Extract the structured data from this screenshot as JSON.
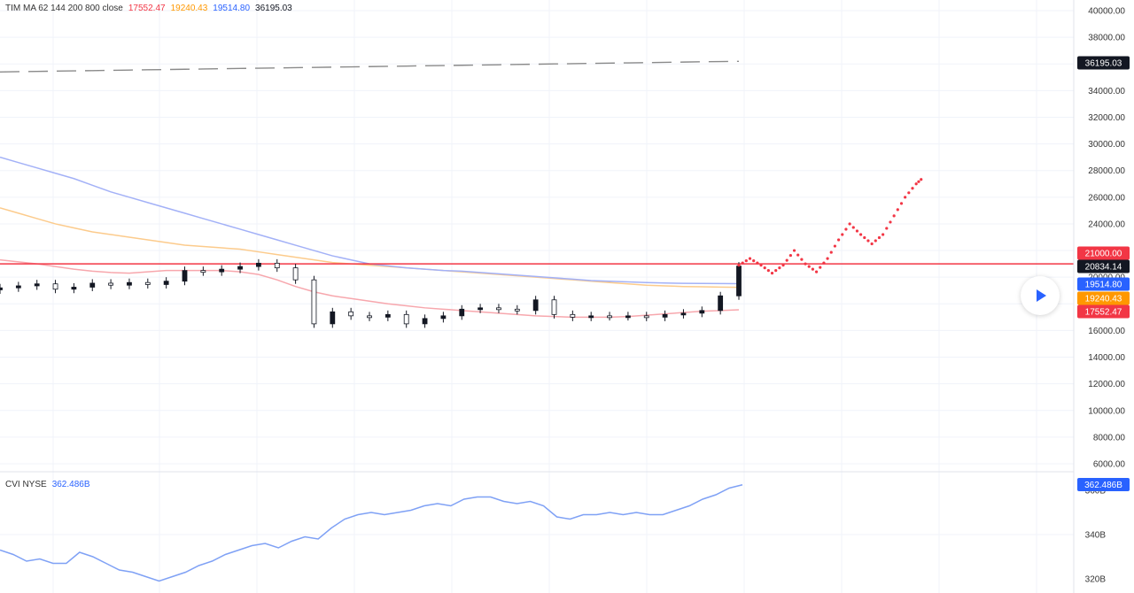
{
  "main_legend": {
    "label": "TIM MA 62 144 200 800 close",
    "values": [
      {
        "text": "17552.47",
        "color": "#f23645"
      },
      {
        "text": "19240.43",
        "color": "#ff9800"
      },
      {
        "text": "19514.80",
        "color": "#2962ff"
      },
      {
        "text": "36195.03",
        "color": "#131722"
      }
    ]
  },
  "sub_legend": {
    "label": "CVI NYSE",
    "value": "362.486B",
    "color": "#2962ff"
  },
  "price_axis": {
    "ticks": [
      "40000.00",
      "38000.00",
      "36000.00",
      "34000.00",
      "32000.00",
      "30000.00",
      "28000.00",
      "26000.00",
      "24000.00",
      "22000.00",
      "20000.00",
      "18000.00",
      "16000.00",
      "14000.00",
      "12000.00",
      "10000.00",
      "8000.00",
      "6000.00"
    ]
  },
  "price_tags": [
    {
      "text": "36195.03",
      "value": 36195.03,
      "color": "#131722"
    },
    {
      "text": "21000.00",
      "value": 21000.0,
      "color": "#f23645"
    },
    {
      "text": "20834.14",
      "value": 20834.14,
      "color": "#131722"
    },
    {
      "text": "19514.80",
      "value": 19514.8,
      "color": "#2962ff"
    },
    {
      "text": "19240.43",
      "value": 19240.43,
      "color": "#ff9800"
    },
    {
      "text": "17552.47",
      "value": 17552.47,
      "color": "#f23645"
    }
  ],
  "sub_axis": {
    "ticks": [
      {
        "text": "360B",
        "value": 360
      },
      {
        "text": "340B",
        "value": 340
      },
      {
        "text": "320B",
        "value": 320
      }
    ],
    "tag": {
      "text": "362.486B",
      "value": 362.486,
      "color": "#2962ff"
    }
  },
  "chart_data": [
    {
      "type": "line",
      "panel": "price",
      "ylim": [
        5000,
        41000
      ],
      "x": [
        0,
        5,
        10,
        15,
        20,
        25,
        30,
        35,
        40,
        45,
        50,
        55,
        60,
        65,
        70,
        75,
        80,
        85,
        90,
        95,
        100,
        105,
        110,
        115,
        120,
        125,
        130,
        135,
        140,
        145,
        150,
        155,
        160,
        165,
        170,
        175,
        180,
        185,
        190,
        195,
        200
      ],
      "horizontal_line": {
        "value": 21000,
        "color": "#f23645"
      },
      "projection": {
        "color": "#f23645",
        "x": [
          200,
          203,
          206,
          209,
          212,
          215,
          218,
          221,
          224,
          227,
          230,
          233,
          236,
          239,
          242,
          245,
          248,
          250
        ],
        "y": [
          20900,
          21400,
          20900,
          20300,
          20900,
          22000,
          21000,
          20400,
          21400,
          22800,
          24000,
          23200,
          22500,
          23200,
          24600,
          26000,
          27000,
          27500
        ]
      },
      "series": [
        {
          "name": "MA62",
          "color": "#f7a7ad",
          "values": [
            21300,
            21150,
            21000,
            20800,
            20600,
            20450,
            20350,
            20300,
            20400,
            20500,
            20500,
            20500,
            20500,
            20400,
            20200,
            19800,
            19300,
            18900,
            18600,
            18400,
            18200,
            18000,
            17850,
            17700,
            17600,
            17500,
            17400,
            17300,
            17200,
            17100,
            17050,
            17000,
            17000,
            17000,
            17050,
            17150,
            17250,
            17350,
            17450,
            17500,
            17552
          ]
        },
        {
          "name": "MA144",
          "color": "#fccb8c",
          "values": [
            25200,
            24800,
            24400,
            24000,
            23700,
            23400,
            23200,
            23000,
            22800,
            22600,
            22400,
            22300,
            22200,
            22100,
            21900,
            21700,
            21500,
            21300,
            21100,
            21000,
            20900,
            20800,
            20700,
            20600,
            20500,
            20400,
            20300,
            20200,
            20100,
            20000,
            19900,
            19800,
            19700,
            19600,
            19500,
            19400,
            19350,
            19300,
            19280,
            19260,
            19240
          ]
        },
        {
          "name": "MA200",
          "color": "#a3b1f7",
          "values": [
            29000,
            28600,
            28200,
            27800,
            27400,
            26900,
            26400,
            26000,
            25600,
            25200,
            24800,
            24400,
            24000,
            23600,
            23200,
            22800,
            22400,
            22000,
            21600,
            21300,
            21000,
            20850,
            20700,
            20600,
            20500,
            20450,
            20350,
            20250,
            20150,
            20050,
            19950,
            19850,
            19750,
            19700,
            19650,
            19600,
            19560,
            19540,
            19530,
            19520,
            19515
          ]
        },
        {
          "name": "MA800",
          "color": "#8a8a8a",
          "dashed": true,
          "values": [
            35400,
            35420,
            35440,
            35460,
            35480,
            35500,
            35520,
            35540,
            35560,
            35580,
            35600,
            35620,
            35640,
            35660,
            35680,
            35700,
            35720,
            35740,
            35760,
            35780,
            35800,
            35820,
            35840,
            35860,
            35880,
            35900,
            35920,
            35940,
            35960,
            35980,
            36000,
            36020,
            36040,
            36060,
            36080,
            36100,
            36120,
            36140,
            36160,
            36180,
            36195
          ]
        }
      ],
      "candles_close": [
        19200,
        19350,
        19500,
        19100,
        19250,
        19550,
        19400,
        19600,
        19450,
        19700,
        20500,
        20400,
        20600,
        20800,
        21050,
        20700,
        19800,
        16500,
        17400,
        17100,
        17000,
        17200,
        16500,
        16900,
        17100,
        17600,
        17700,
        17600,
        17500,
        18300,
        17200,
        17000,
        17100,
        17050,
        17100,
        17000,
        17200,
        17300,
        17500,
        18600,
        20834
      ]
    },
    {
      "type": "line",
      "panel": "sub",
      "ylim": [
        318,
        366
      ],
      "series": [
        {
          "name": "CVI NYSE",
          "color": "#7fa1f5",
          "values": [
            333,
            331,
            328,
            329,
            327,
            327,
            332,
            330,
            327,
            324,
            323,
            321,
            319,
            321,
            323,
            326,
            328,
            331,
            333,
            335,
            336,
            334,
            337,
            339,
            338,
            343,
            347,
            349,
            350,
            349,
            350,
            351,
            353,
            354,
            353,
            356,
            357,
            357,
            355,
            354,
            355,
            353,
            348,
            347,
            349,
            349,
            350,
            349,
            350,
            349,
            349,
            351,
            353,
            356,
            358,
            361,
            362.486
          ]
        }
      ]
    }
  ]
}
